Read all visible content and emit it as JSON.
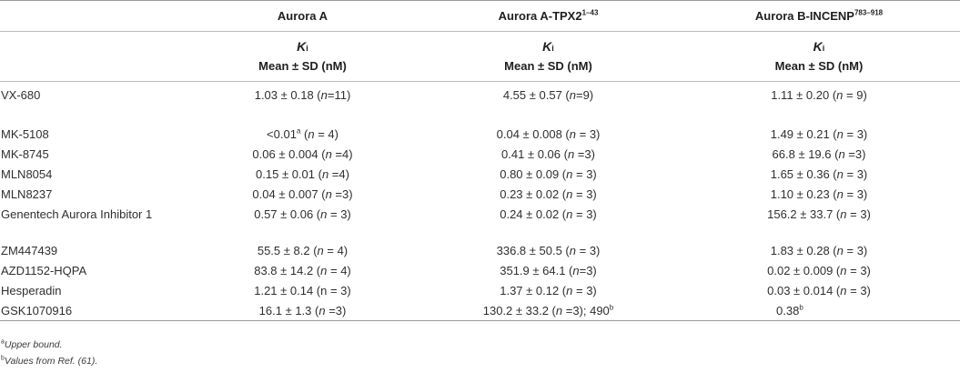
{
  "header": {
    "col1": "Aurora A",
    "col2_main": "Aurora A-TPX2",
    "col2_sup": "1–43",
    "col3_main": "Aurora B-INCENP",
    "col3_sup": "783–918",
    "ki_symbol": "K",
    "ki_sub": "i",
    "units": "Mean ± SD (nM)"
  },
  "rows": [
    {
      "name": "VX-680",
      "a": {
        "val": "1.03 ± 0.18 (",
        "n": "n",
        "rest": "=11)"
      },
      "b": {
        "val": "4.55 ± 0.57 (",
        "n": "n",
        "rest": "=9)"
      },
      "c": {
        "val": "1.11 ± 0.20 (",
        "n": "n",
        "rest": " = 9)"
      }
    },
    {
      "name": "MK-5108",
      "a": {
        "val": "<0.01",
        "sup": "a",
        "val2": " (",
        "n": "n",
        "rest": " = 4)"
      },
      "b": {
        "val": "0.04 ± 0.008 (",
        "n": "n",
        "rest": " = 3)"
      },
      "c": {
        "val": "1.49 ± 0.21 (",
        "n": "n",
        "rest": " = 3)"
      }
    },
    {
      "name": "MK-8745",
      "a": {
        "val": "0.06 ± 0.004 (",
        "n": "n",
        "rest": " =4)"
      },
      "b": {
        "val": "0.41 ± 0.06 (",
        "n": "n",
        "rest": " =3)"
      },
      "c": {
        "val": "66.8 ± 19.6 (",
        "n": "n",
        "rest": " =3)"
      }
    },
    {
      "name": "MLN8054",
      "a": {
        "val": "0.15 ± 0.01 (",
        "n": "n",
        "rest": " =4)"
      },
      "b": {
        "val": "0.80 ± 0.09 (",
        "n": "n",
        "rest": " = 3)"
      },
      "c": {
        "val": "1.65 ± 0.36 (",
        "n": "n",
        "rest": " = 3)"
      }
    },
    {
      "name": "MLN8237",
      "a": {
        "val": "0.04 ± 0.007 (",
        "n": "n",
        "rest": " =3)"
      },
      "b": {
        "val": "0.23 ± 0.02 (",
        "n": "n",
        "rest": " = 3)"
      },
      "c": {
        "val": "1.10 ± 0.23 (",
        "n": "n",
        "rest": " = 3)"
      }
    },
    {
      "name": "Genentech Aurora Inhibitor 1",
      "a": {
        "val": "0.57 ± 0.06 (",
        "n": "n",
        "rest": " = 3)"
      },
      "b": {
        "val": "0.24 ± 0.02 (",
        "n": "n",
        "rest": " = 3)"
      },
      "c": {
        "val": "156.2 ± 33.7 (",
        "n": "n",
        "rest": " = 3)"
      }
    },
    {
      "name": "ZM447439",
      "a": {
        "val": "55.5 ± 8.2 (",
        "n": "n",
        "rest": " = 4)"
      },
      "b": {
        "val": "336.8 ± 50.5 (",
        "n": "n",
        "rest": " = 3)"
      },
      "c": {
        "val": "1.83 ± 0.28 (",
        "n": "n",
        "rest": " = 3)"
      }
    },
    {
      "name": "AZD1152-HQPA",
      "a": {
        "val": "83.8 ± 14.2 (",
        "n": "n",
        "rest": " = 4)"
      },
      "b": {
        "val": "351.9 ± 64.1 (",
        "n": "n",
        "rest": "=3)"
      },
      "c": {
        "val": "0.02 ± 0.009 (",
        "n": "n",
        "rest": " = 3)"
      }
    },
    {
      "name": "Hesperadin",
      "a": {
        "val": "1.21 ± 0.14 (n = 3)"
      },
      "b": {
        "val": "1.37 ± 0.12 (",
        "n": "n",
        "rest": " = 3)"
      },
      "c": {
        "val": "0.03 ± 0.014 (",
        "n": "n",
        "rest": " = 3)"
      }
    },
    {
      "name": "GSK1070916",
      "a": {
        "val": "16.1 ± 1.3 (",
        "n": "n",
        "rest": " =3)"
      },
      "b": {
        "val": "130.2 ± 33.2 (",
        "n": "n",
        "rest": " =3); 490",
        "sup": "b"
      },
      "c": {
        "val": "0.38",
        "sup": "b"
      }
    }
  ],
  "footnotes": {
    "a_mark": "a",
    "a_text": "Upper bound.",
    "b_mark": "b",
    "b_text_pre": "Values from Ref. (",
    "b_ref": "61",
    "b_text_post": ")."
  }
}
